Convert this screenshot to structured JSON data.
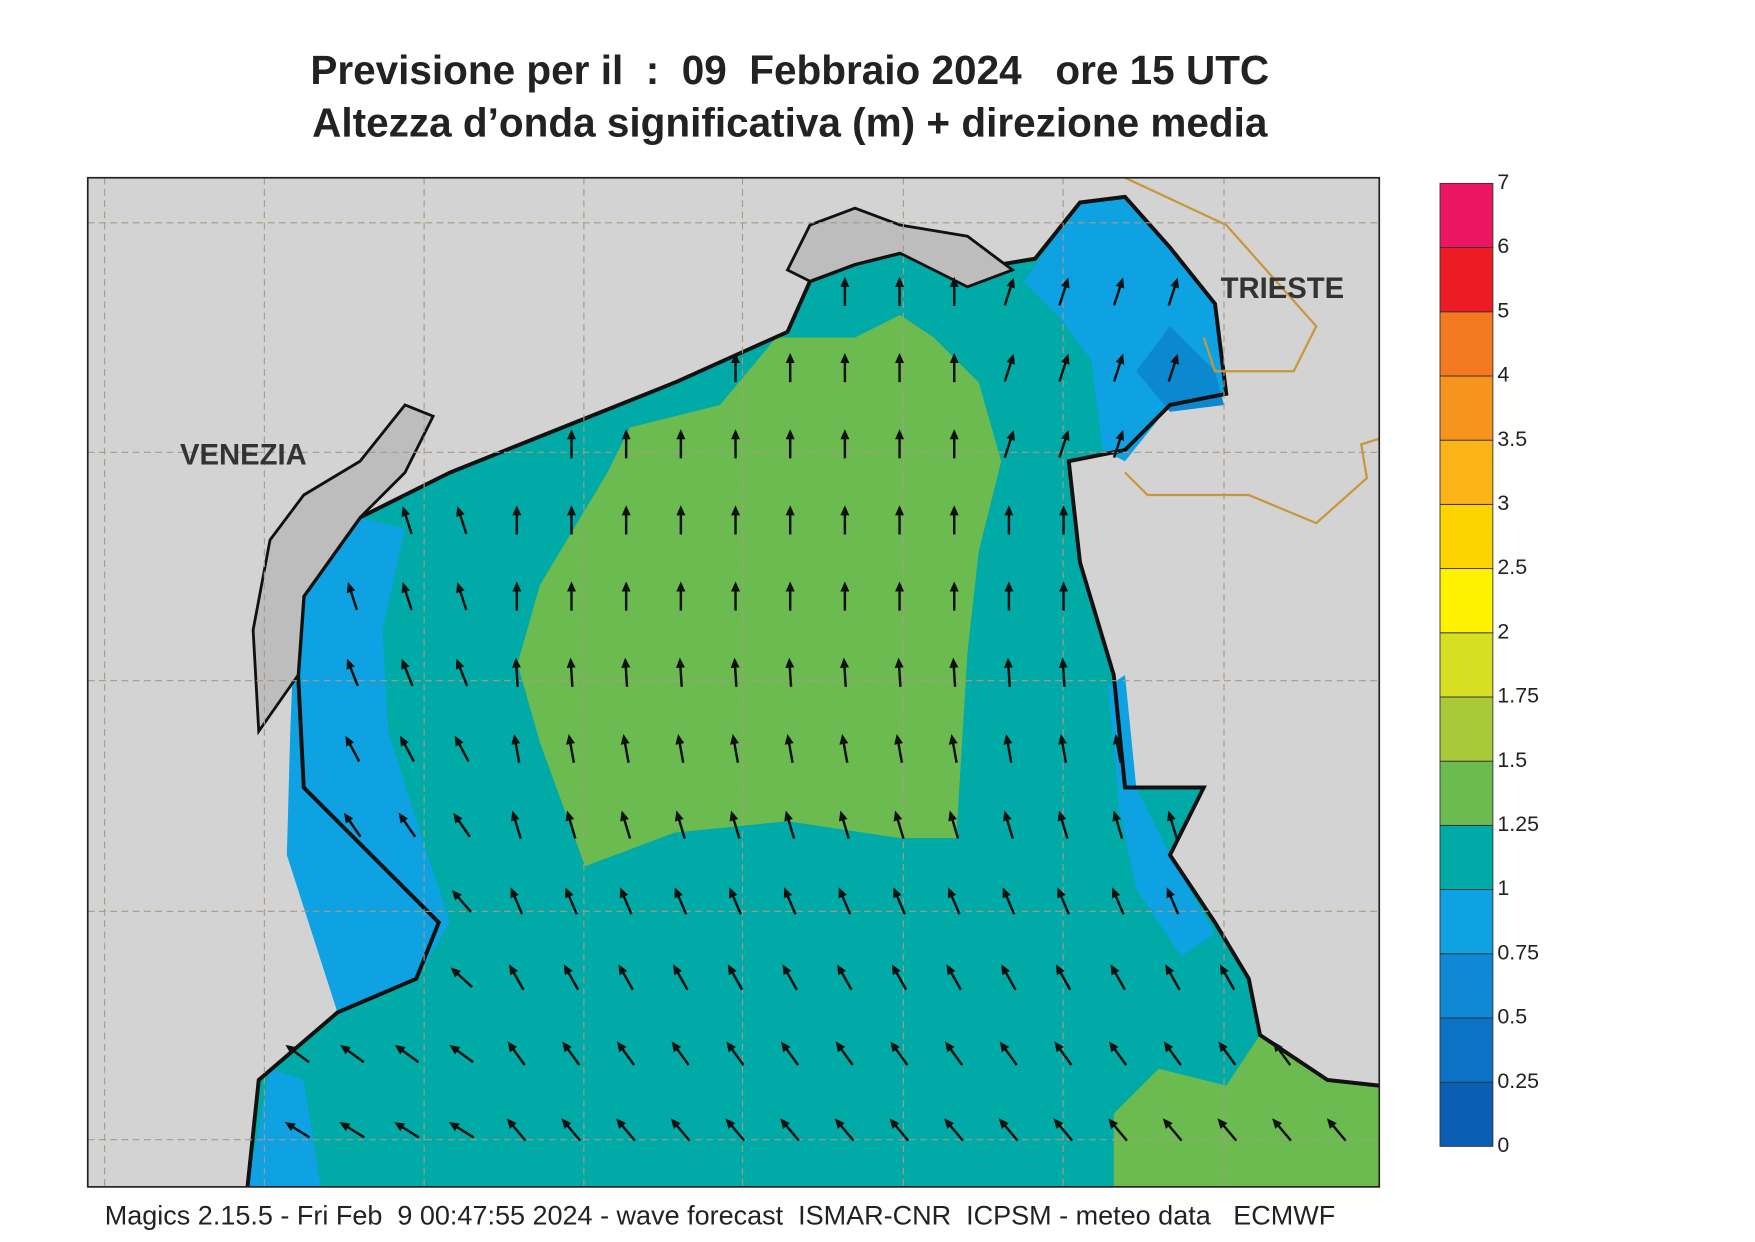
{
  "title": [
    "Previsione per il  :  09  Febbraio 2024   ore 15 UTC",
    "Altezza d’onda significativa (m) + direzione media"
  ],
  "map": {
    "labels": [
      "VENEZIA",
      "TRIESTE"
    ]
  },
  "legend": {
    "levels": [
      0,
      0.25,
      0.5,
      0.75,
      1,
      1.25,
      1.5,
      1.75,
      2,
      2.5,
      3,
      3.5,
      4,
      5,
      6,
      7
    ],
    "colors": [
      "#0a5fb4",
      "#0b72c6",
      "#0f88d6",
      "#0ea2e2",
      "#00aaa6",
      "#6cbb50",
      "#a8c93a",
      "#d8df22",
      "#fff200",
      "#fdd300",
      "#fbb416",
      "#f7941d",
      "#f47921",
      "#ed1c24",
      "#ec1561"
    ]
  },
  "footer": "Magics 2.15.5 - Fri Feb  9 00:47:55 2024 - wave forecast  ISMAR-CNR  ICPSM - meteo data   ECMWF"
}
